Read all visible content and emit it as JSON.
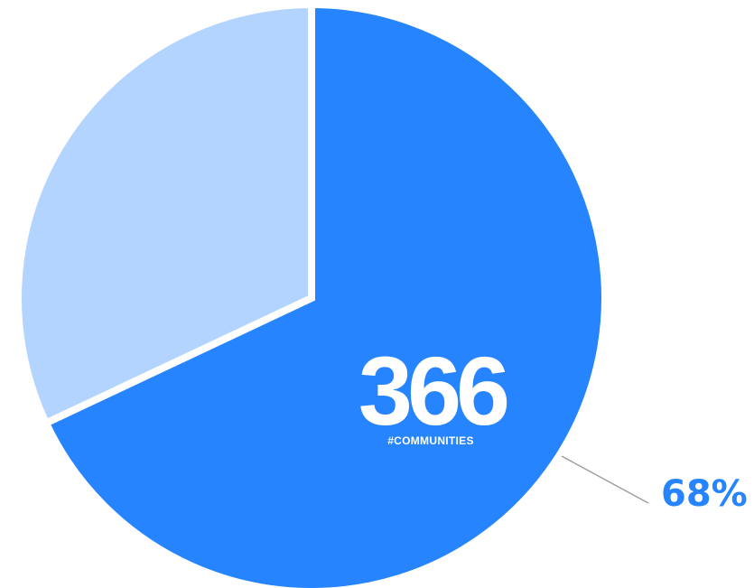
{
  "chart_data": {
    "type": "pie",
    "slices": [
      {
        "value": 68,
        "color": "#2684ff"
      },
      {
        "value": 32,
        "color": "#b3d4ff"
      }
    ],
    "center_value": "366",
    "center_label": "#COMMUNITIES",
    "annotations": [
      {
        "text": "68%",
        "slice": 0
      }
    ]
  },
  "colors": {
    "highlight_text": "#2684ff",
    "center_text": "#ffffff",
    "leader_line": "#9e9e9e",
    "separator": "#ffffff"
  }
}
